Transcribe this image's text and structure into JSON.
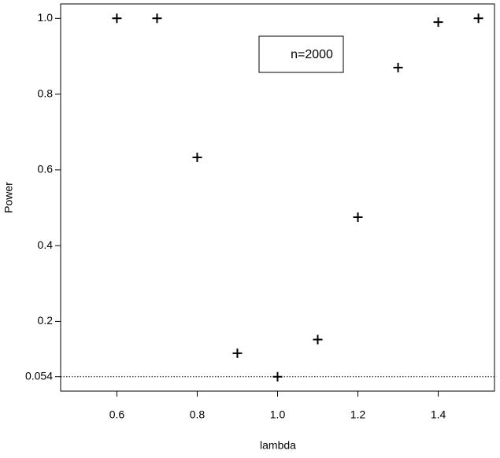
{
  "chart_data": {
    "type": "scatter",
    "x_label": "lambda",
    "y_label": "Power",
    "x": [
      0.6,
      0.7,
      0.8,
      0.9,
      1.0,
      1.1,
      1.2,
      1.3,
      1.4,
      1.5
    ],
    "values": [
      1.0,
      1.0,
      0.633,
      0.116,
      0.054,
      0.152,
      0.475,
      0.87,
      0.99,
      1.0
    ],
    "color": "#000000",
    "xlim": [
      0.46,
      1.54
    ],
    "ylim": [
      0.016,
      1.038
    ],
    "xticks": [
      0.6,
      0.8,
      {
        "value": 1,
        "label": "1.0"
      },
      1.2,
      1.4
    ],
    "yticks": [
      0.054,
      0.2,
      0.4,
      0.6,
      0.8,
      {
        "value": 1,
        "label": "1.0"
      }
    ],
    "reference_line": 0.054,
    "legend": {
      "text": "n=2000",
      "position": "top"
    }
  }
}
